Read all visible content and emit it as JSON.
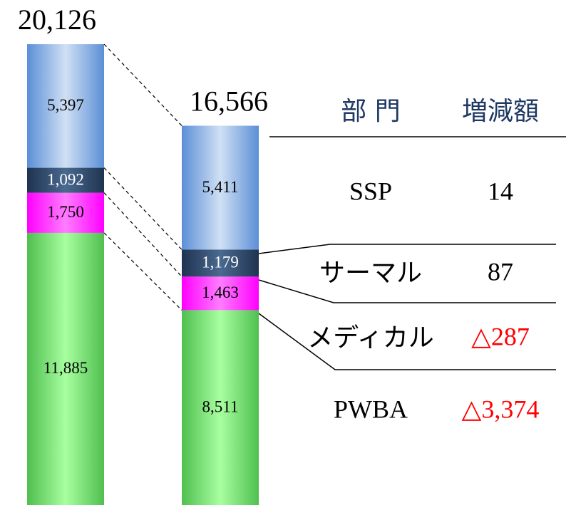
{
  "chart_data": {
    "type": "stacked_bar",
    "totals": [
      20126,
      16566
    ],
    "total_labels": [
      "20,126",
      "16,566"
    ],
    "series": [
      {
        "name": "PWBA",
        "color": "#7be87b",
        "label_color": "#000000",
        "values": [
          11885,
          8511
        ],
        "value_labels": [
          "11,885",
          "8,511"
        ]
      },
      {
        "name": "メディカル",
        "color": "#ff33ff",
        "label_color": "#000000",
        "values": [
          1750,
          1463
        ],
        "value_labels": [
          "1,750",
          "1,463"
        ]
      },
      {
        "name": "サーマル",
        "color": "#2e4a6e",
        "label_color": "#ffffff",
        "values": [
          1092,
          1179
        ],
        "value_labels": [
          "1,092",
          "1,179"
        ]
      },
      {
        "name": "SSP",
        "color": "#8fb3e6",
        "label_color": "#000000",
        "values": [
          5397,
          5411
        ],
        "value_labels": [
          "5,397",
          "5,411"
        ]
      }
    ]
  },
  "table": {
    "headers": [
      "部 門",
      "増減額"
    ],
    "changes": [
      "14",
      "87",
      "△287",
      "△3,374"
    ],
    "change_colors": [
      "#000000",
      "#000000",
      "#ff0000",
      "#ff0000"
    ]
  }
}
